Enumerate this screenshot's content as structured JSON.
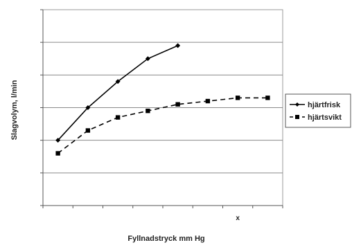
{
  "chart_data": {
    "type": "line",
    "title": "",
    "xlabel": "Fyllnadstryck mm Hg",
    "ylabel": "Slagvolym, l/min",
    "xlim": [
      0,
      8
    ],
    "ylim": [
      0,
      6
    ],
    "x_ticks_count": 8,
    "y_grid": true,
    "legend_position": "right",
    "series": [
      {
        "name": "hjärtfrisk",
        "color": "#000000",
        "line_style": "solid",
        "marker": "diamond",
        "x": [
          0.5,
          1.5,
          2.5,
          3.5,
          4.5
        ],
        "y": [
          2.0,
          3.0,
          3.8,
          4.5,
          4.9
        ]
      },
      {
        "name": "hjärtsvikt",
        "color": "#000000",
        "line_style": "dashed",
        "marker": "square",
        "x": [
          0.5,
          1.5,
          2.5,
          3.5,
          4.5,
          5.5,
          6.5,
          7.5
        ],
        "y": [
          1.6,
          2.3,
          2.7,
          2.9,
          3.1,
          3.2,
          3.3,
          3.3
        ]
      }
    ],
    "annotations": [
      {
        "text": "x",
        "x": 6.5,
        "y": -0.45
      }
    ]
  }
}
